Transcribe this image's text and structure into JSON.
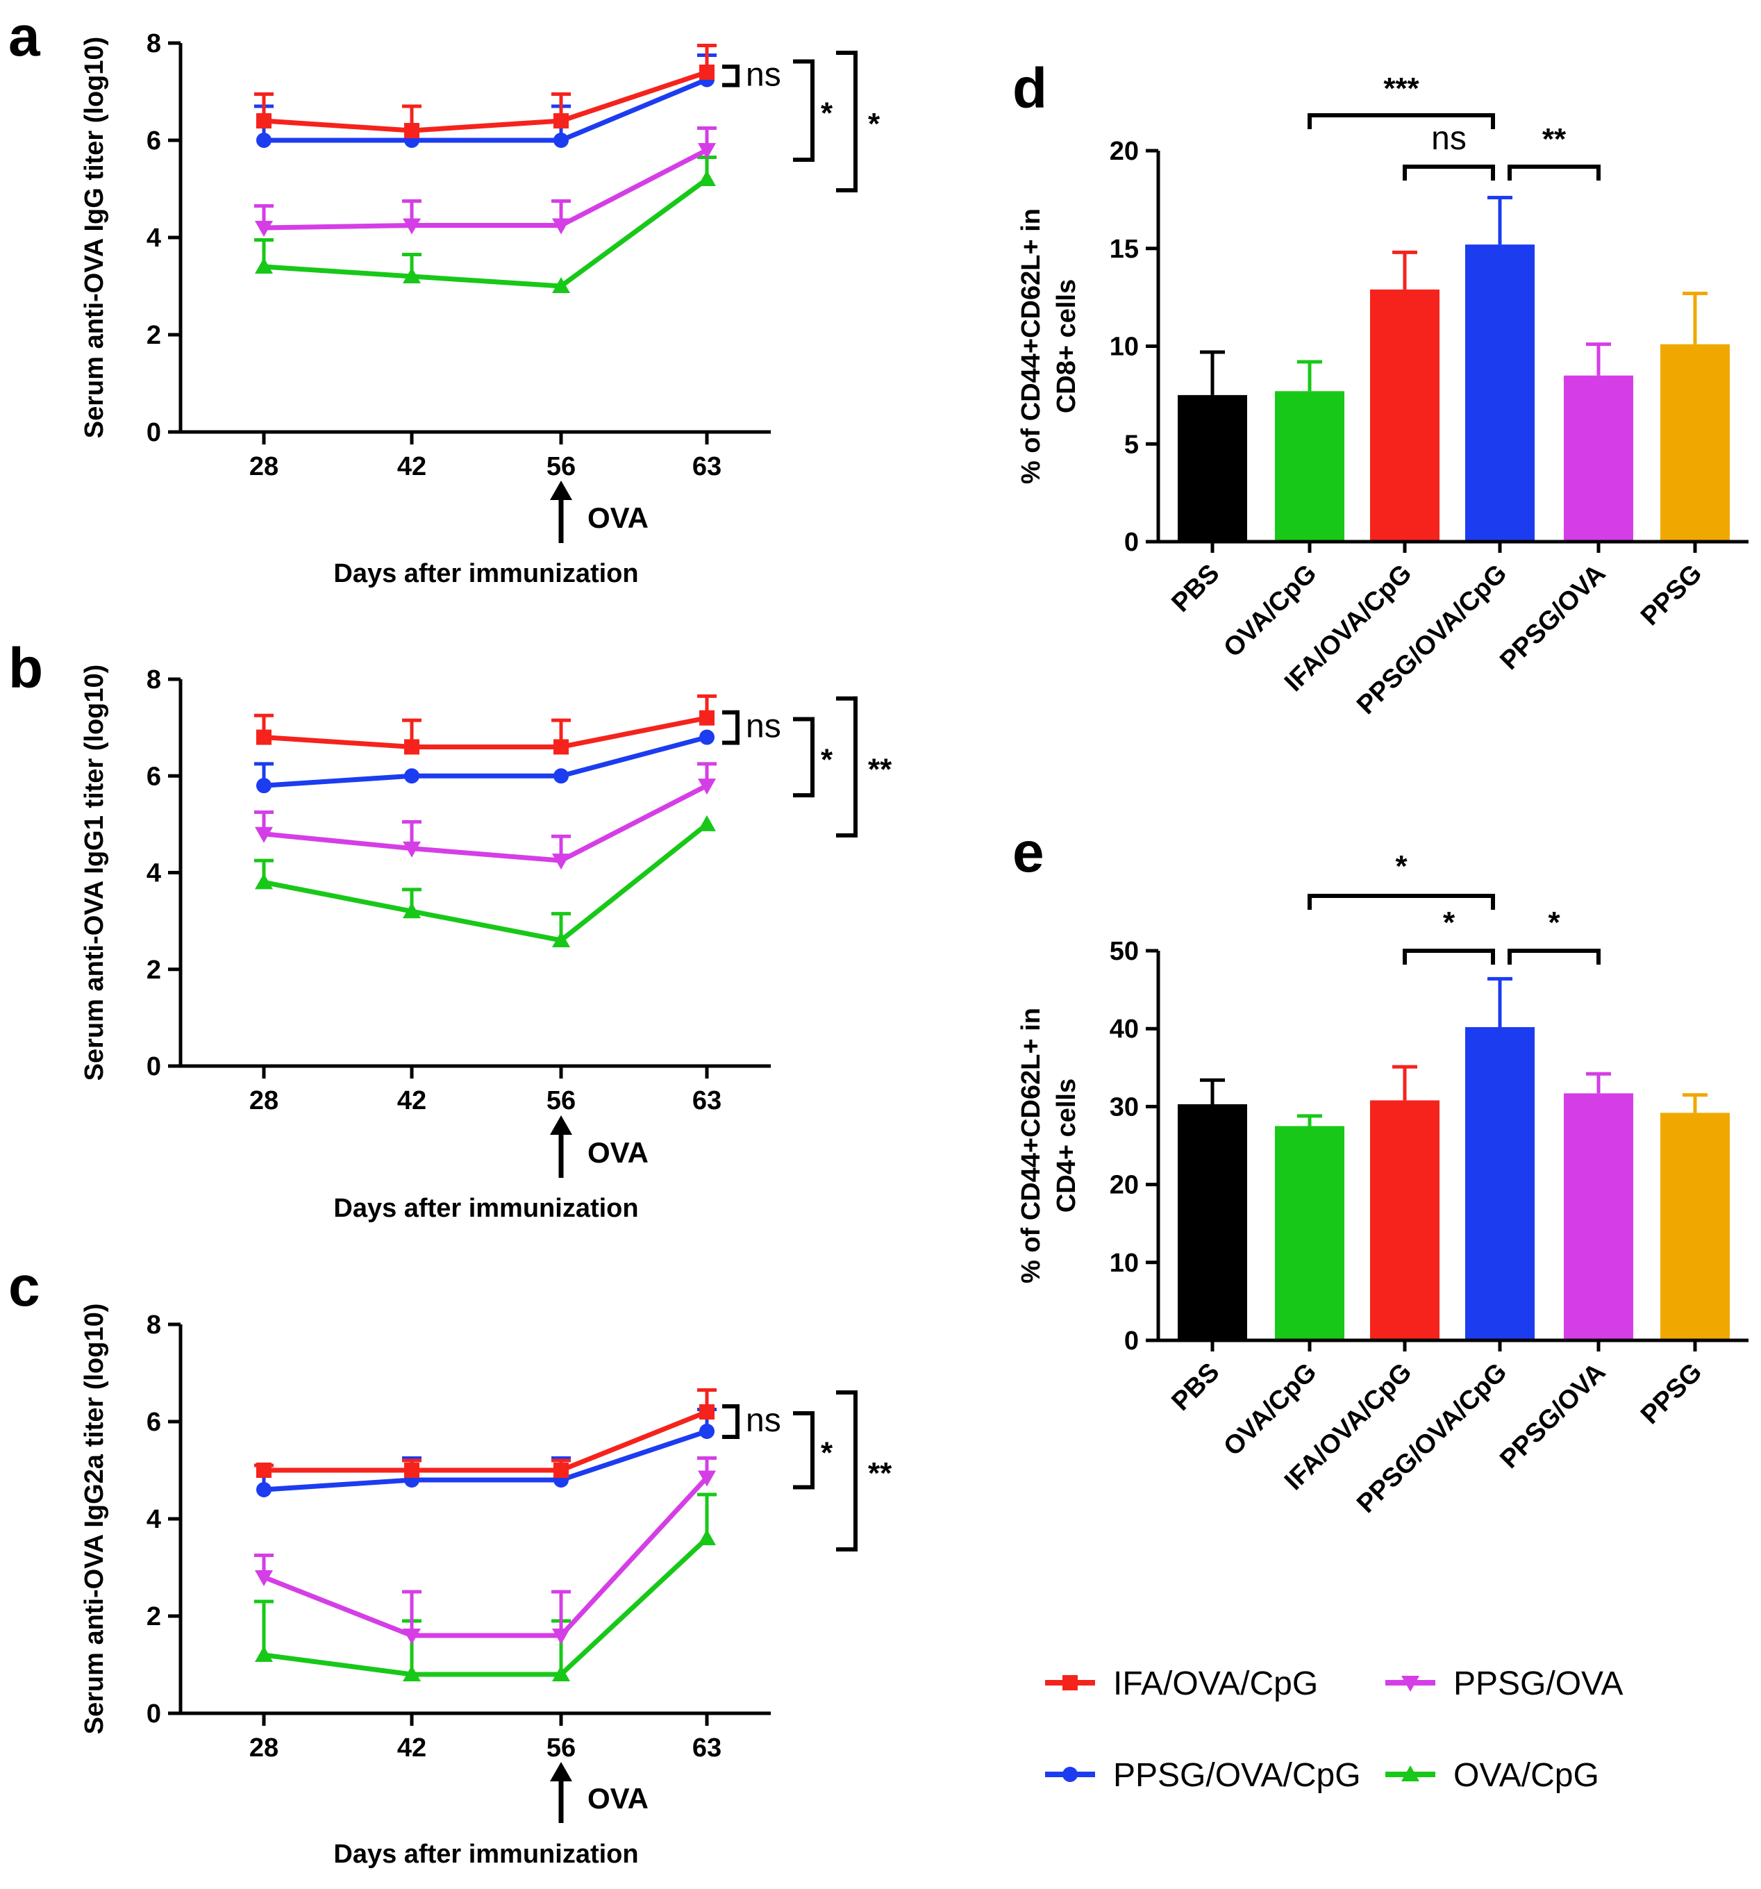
{
  "figure_labels": [
    "a",
    "b",
    "c",
    "d",
    "e"
  ],
  "colors": {
    "IFA/OVA/CpG": "#f5231c",
    "PPSG/OVA/CpG": "#1c3cf0",
    "PPSG/OVA": "#d53ee6",
    "OVA/CpG": "#18c818",
    "PBS": "#000000",
    "PPSG": "#f0a800"
  },
  "legend": {
    "items": [
      {
        "label": "IFA/OVA/CpG",
        "color": "#f5231c",
        "marker": "square"
      },
      {
        "label": "PPSG/OVA",
        "color": "#d53ee6",
        "marker": "triangle-down"
      },
      {
        "label": "PPSG/OVA/CpG",
        "color": "#1c3cf0",
        "marker": "circle"
      },
      {
        "label": "OVA/CpG",
        "color": "#18c818",
        "marker": "triangle-up"
      }
    ]
  },
  "chart_data": [
    {
      "panel": "a",
      "type": "line",
      "title": "",
      "xlabel": "Days after immunization",
      "ylabel": "Serum anti-OVA IgG titer (log10)",
      "x": [
        "28",
        "42",
        "56",
        "63"
      ],
      "ylim": [
        0,
        8
      ],
      "yticks": [
        "0",
        "2",
        "4",
        "6",
        "8"
      ],
      "boost_marker": {
        "at": "56",
        "label": "OVA"
      },
      "series": [
        {
          "name": "IFA/OVA/CpG",
          "values": [
            6.4,
            6.2,
            6.4,
            7.4
          ],
          "errors": [
            0.55,
            0.5,
            0.55,
            0.55
          ]
        },
        {
          "name": "PPSG/OVA/CpG",
          "values": [
            6.0,
            6.0,
            6.0,
            7.25
          ],
          "errors": [
            0.7,
            0.7,
            0.7,
            0.5
          ]
        },
        {
          "name": "PPSG/OVA",
          "values": [
            4.2,
            4.25,
            4.25,
            5.8
          ],
          "errors": [
            0.45,
            0.5,
            0.5,
            0.45
          ]
        },
        {
          "name": "OVA/CpG",
          "values": [
            3.4,
            3.2,
            3.0,
            5.2
          ],
          "errors": [
            0.55,
            0.45,
            0.0,
            0.45
          ]
        }
      ],
      "significance": [
        {
          "label": "ns",
          "series": [
            "IFA/OVA/CpG",
            "PPSG/OVA/CpG"
          ]
        },
        {
          "label": "*",
          "series": [
            "PPSG/OVA/CpG",
            "PPSG/OVA"
          ]
        },
        {
          "label": "*",
          "series": [
            "IFA/OVA/CpG",
            "OVA/CpG"
          ]
        }
      ]
    },
    {
      "panel": "b",
      "type": "line",
      "title": "",
      "xlabel": "Days after immunization",
      "ylabel": "Serum anti-OVA IgG1 titer (log10)",
      "x": [
        "28",
        "42",
        "56",
        "63"
      ],
      "ylim": [
        0,
        8
      ],
      "yticks": [
        "0",
        "2",
        "4",
        "6",
        "8"
      ],
      "boost_marker": {
        "at": "56",
        "label": "OVA"
      },
      "series": [
        {
          "name": "IFA/OVA/CpG",
          "values": [
            6.8,
            6.6,
            6.6,
            7.2
          ],
          "errors": [
            0.45,
            0.55,
            0.55,
            0.45
          ]
        },
        {
          "name": "PPSG/OVA/CpG",
          "values": [
            5.8,
            6.0,
            6.0,
            6.8
          ],
          "errors": [
            0.45,
            0.0,
            0.0,
            0.0
          ]
        },
        {
          "name": "PPSG/OVA",
          "values": [
            4.8,
            4.5,
            4.25,
            5.8
          ],
          "errors": [
            0.45,
            0.55,
            0.5,
            0.45
          ]
        },
        {
          "name": "OVA/CpG",
          "values": [
            3.8,
            3.2,
            2.6,
            5.0
          ],
          "errors": [
            0.45,
            0.45,
            0.55,
            0.0
          ]
        }
      ],
      "significance": [
        {
          "label": "ns",
          "series": [
            "IFA/OVA/CpG",
            "PPSG/OVA/CpG"
          ]
        },
        {
          "label": "*",
          "series": [
            "PPSG/OVA/CpG",
            "PPSG/OVA"
          ]
        },
        {
          "label": "**",
          "series": [
            "IFA/OVA/CpG",
            "OVA/CpG"
          ]
        }
      ]
    },
    {
      "panel": "c",
      "type": "line",
      "title": "",
      "xlabel": "Days after immunization",
      "ylabel": "Serum anti-OVA IgG2a titer (log10)",
      "x": [
        "28",
        "42",
        "56",
        "63"
      ],
      "ylim": [
        0,
        8
      ],
      "yticks": [
        "0",
        "2",
        "4",
        "6",
        "8"
      ],
      "boost_marker": {
        "at": "56",
        "label": "OVA"
      },
      "series": [
        {
          "name": "IFA/OVA/CpG",
          "values": [
            5.0,
            5.0,
            5.0,
            6.2
          ],
          "errors": [
            0.1,
            0.2,
            0.2,
            0.45
          ]
        },
        {
          "name": "PPSG/OVA/CpG",
          "values": [
            4.6,
            4.8,
            4.8,
            5.8
          ],
          "errors": [
            0.5,
            0.45,
            0.45,
            0.45
          ]
        },
        {
          "name": "PPSG/OVA",
          "values": [
            2.8,
            1.6,
            1.6,
            4.85
          ],
          "errors": [
            0.45,
            0.9,
            0.9,
            0.4
          ]
        },
        {
          "name": "OVA/CpG",
          "values": [
            1.2,
            0.8,
            0.8,
            3.6
          ],
          "errors": [
            1.1,
            1.1,
            1.1,
            0.9
          ]
        }
      ],
      "significance": [
        {
          "label": "ns",
          "series": [
            "IFA/OVA/CpG",
            "PPSG/OVA/CpG"
          ]
        },
        {
          "label": "*",
          "series": [
            "PPSG/OVA/CpG",
            "PPSG/OVA"
          ]
        },
        {
          "label": "**",
          "series": [
            "IFA/OVA/CpG",
            "OVA/CpG"
          ]
        }
      ]
    },
    {
      "panel": "d",
      "type": "bar",
      "title": "",
      "xlabel": "",
      "ylabel_lines": [
        "% of CD44+CD62L+ in",
        "CD8+ cells"
      ],
      "categories": [
        "PBS",
        "OVA/CpG",
        "IFA/OVA/CpG",
        "PPSG/OVA/CpG",
        "PPSG/OVA",
        "PPSG"
      ],
      "values": [
        7.5,
        7.7,
        12.9,
        15.2,
        8.5,
        10.1
      ],
      "errors": [
        2.2,
        1.5,
        1.9,
        2.4,
        1.6,
        2.6
      ],
      "ylim": [
        0,
        20
      ],
      "yticks": [
        "0",
        "5",
        "10",
        "15",
        "20"
      ],
      "significance": [
        {
          "label": "***",
          "from": "OVA/CpG",
          "to": "PPSG/OVA/CpG"
        },
        {
          "label": "ns",
          "from": "IFA/OVA/CpG",
          "to": "PPSG/OVA/CpG"
        },
        {
          "label": "**",
          "from": "PPSG/OVA/CpG",
          "to": "PPSG/OVA"
        }
      ]
    },
    {
      "panel": "e",
      "type": "bar",
      "title": "",
      "xlabel": "",
      "ylabel_lines": [
        "% of CD44+CD62L+ in",
        "CD4+ cells"
      ],
      "categories": [
        "PBS",
        "OVA/CpG",
        "IFA/OVA/CpG",
        "PPSG/OVA/CpG",
        "PPSG/OVA",
        "PPSG"
      ],
      "values": [
        30.3,
        27.5,
        30.8,
        40.2,
        31.7,
        29.2
      ],
      "errors": [
        3.1,
        1.3,
        4.3,
        6.2,
        2.5,
        2.3
      ],
      "ylim": [
        0,
        50
      ],
      "yticks": [
        "0",
        "10",
        "20",
        "30",
        "40",
        "50"
      ],
      "significance": [
        {
          "label": "*",
          "from": "OVA/CpG",
          "to": "PPSG/OVA/CpG"
        },
        {
          "label": "*",
          "from": "IFA/OVA/CpG",
          "to": "PPSG/OVA/CpG"
        },
        {
          "label": "*",
          "from": "PPSG/OVA/CpG",
          "to": "PPSG/OVA"
        }
      ]
    }
  ]
}
